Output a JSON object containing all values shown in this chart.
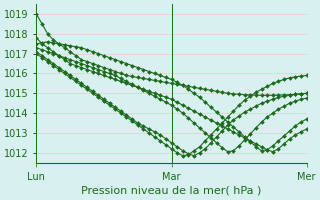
{
  "title": "",
  "xlabel": "Pression niveau de la mer( hPa )",
  "background_color": "#d8f0f0",
  "grid_color": "#f0c8c8",
  "line_color": "#1a6b1a",
  "marker": "D",
  "marker_size": 2.0,
  "linewidth": 0.8,
  "ylim": [
    1011.5,
    1019.5
  ],
  "yticks": [
    1012,
    1013,
    1014,
    1015,
    1016,
    1017,
    1018,
    1019
  ],
  "xlim": [
    0,
    96
  ],
  "xtick_positions": [
    0,
    48,
    96
  ],
  "xtick_labels": [
    "Lun",
    "Mar",
    "Mer"
  ],
  "xlabel_fontsize": 8,
  "tick_fontsize": 7,
  "series": [
    {
      "x": [
        0,
        2,
        4,
        6,
        8,
        10,
        12,
        14,
        16,
        18,
        20,
        22,
        24,
        26,
        28,
        30,
        32,
        34,
        36,
        38,
        40,
        42,
        44,
        46,
        48,
        50,
        52,
        54,
        56,
        58,
        60,
        62,
        64,
        66,
        68,
        70,
        72,
        74,
        76,
        78,
        80,
        82,
        84,
        86,
        88,
        90,
        92,
        94,
        96
      ],
      "y": [
        1019.0,
        1018.5,
        1018.0,
        1017.7,
        1017.5,
        1017.3,
        1017.1,
        1016.9,
        1016.7,
        1016.6,
        1016.5,
        1016.4,
        1016.3,
        1016.2,
        1016.1,
        1016.0,
        1015.9,
        1015.85,
        1015.8,
        1015.75,
        1015.7,
        1015.65,
        1015.6,
        1015.55,
        1015.5,
        1015.45,
        1015.4,
        1015.35,
        1015.3,
        1015.25,
        1015.2,
        1015.15,
        1015.1,
        1015.05,
        1015.0,
        1014.97,
        1014.95,
        1014.93,
        1014.92,
        1014.91,
        1014.9,
        1014.9,
        1014.9,
        1014.91,
        1014.92,
        1014.93,
        1014.95,
        1014.97,
        1015.0
      ]
    },
    {
      "x": [
        0,
        2,
        4,
        6,
        8,
        10,
        12,
        14,
        16,
        18,
        20,
        22,
        24,
        26,
        28,
        30,
        32,
        34,
        36,
        38,
        40,
        42,
        44,
        46,
        48,
        50,
        52,
        54,
        56,
        58,
        60,
        62,
        64,
        66,
        68,
        70,
        72,
        74,
        76,
        78,
        80,
        82,
        84,
        86,
        88,
        90,
        92,
        94,
        96
      ],
      "y": [
        1017.8,
        1017.5,
        1017.3,
        1017.1,
        1016.9,
        1016.7,
        1016.5,
        1016.4,
        1016.3,
        1016.2,
        1016.1,
        1016.0,
        1015.9,
        1015.8,
        1015.7,
        1015.6,
        1015.5,
        1015.4,
        1015.3,
        1015.2,
        1015.1,
        1015.0,
        1014.9,
        1014.8,
        1014.7,
        1014.55,
        1014.4,
        1014.25,
        1014.1,
        1013.95,
        1013.8,
        1013.65,
        1013.5,
        1013.35,
        1013.2,
        1013.05,
        1012.9,
        1012.75,
        1012.6,
        1012.45,
        1012.3,
        1012.15,
        1012.05,
        1012.2,
        1012.45,
        1012.7,
        1012.9,
        1013.05,
        1013.2
      ]
    },
    {
      "x": [
        0,
        2,
        4,
        6,
        8,
        10,
        12,
        14,
        16,
        18,
        20,
        22,
        24,
        26,
        28,
        30,
        32,
        34,
        36,
        38,
        40,
        42,
        44,
        46,
        48,
        50,
        52,
        54,
        56,
        58,
        60,
        62,
        64,
        66,
        68,
        70,
        72,
        74,
        76,
        78,
        80,
        82,
        84,
        86,
        88,
        90,
        92,
        94,
        96
      ],
      "y": [
        1017.5,
        1017.55,
        1017.6,
        1017.55,
        1017.5,
        1017.45,
        1017.4,
        1017.35,
        1017.3,
        1017.2,
        1017.1,
        1017.0,
        1016.9,
        1016.8,
        1016.7,
        1016.6,
        1016.5,
        1016.4,
        1016.3,
        1016.2,
        1016.1,
        1016.0,
        1015.9,
        1015.8,
        1015.7,
        1015.55,
        1015.4,
        1015.2,
        1015.0,
        1014.8,
        1014.55,
        1014.3,
        1014.05,
        1013.8,
        1013.55,
        1013.3,
        1013.05,
        1012.8,
        1012.55,
        1012.3,
        1012.1,
        1012.15,
        1012.35,
        1012.6,
        1012.85,
        1013.1,
        1013.35,
        1013.55,
        1013.7
      ]
    },
    {
      "x": [
        0,
        2,
        4,
        6,
        8,
        10,
        12,
        14,
        16,
        18,
        20,
        22,
        24,
        26,
        28,
        30,
        32,
        34,
        36,
        38,
        40,
        42,
        44,
        46,
        48,
        50,
        52,
        54,
        56,
        58,
        60,
        62,
        64,
        66,
        68,
        70,
        72,
        74,
        76,
        78,
        80,
        82,
        84,
        86,
        88,
        90,
        92,
        94,
        96
      ],
      "y": [
        1017.3,
        1017.2,
        1017.1,
        1017.0,
        1016.9,
        1016.8,
        1016.7,
        1016.6,
        1016.5,
        1016.4,
        1016.3,
        1016.2,
        1016.1,
        1016.0,
        1015.9,
        1015.75,
        1015.6,
        1015.45,
        1015.3,
        1015.15,
        1015.0,
        1014.85,
        1014.7,
        1014.55,
        1014.4,
        1014.2,
        1014.0,
        1013.75,
        1013.5,
        1013.25,
        1013.0,
        1012.75,
        1012.5,
        1012.25,
        1012.05,
        1012.1,
        1012.35,
        1012.65,
        1012.95,
        1013.25,
        1013.55,
        1013.8,
        1014.0,
        1014.2,
        1014.35,
        1014.5,
        1014.6,
        1014.7,
        1014.75
      ]
    },
    {
      "x": [
        0,
        2,
        4,
        6,
        8,
        10,
        12,
        14,
        16,
        18,
        20,
        22,
        24,
        26,
        28,
        30,
        32,
        34,
        36,
        38,
        40,
        42,
        44,
        46,
        48,
        50,
        52,
        54,
        56,
        58,
        60,
        62,
        64,
        66,
        68,
        70,
        72,
        74,
        76,
        78,
        80,
        82,
        84,
        86,
        88,
        90,
        92,
        94,
        96
      ],
      "y": [
        1017.1,
        1016.9,
        1016.7,
        1016.5,
        1016.3,
        1016.1,
        1015.9,
        1015.7,
        1015.5,
        1015.3,
        1015.1,
        1014.9,
        1014.7,
        1014.5,
        1014.3,
        1014.1,
        1013.9,
        1013.7,
        1013.5,
        1013.35,
        1013.2,
        1013.05,
        1012.9,
        1012.7,
        1012.5,
        1012.3,
        1012.1,
        1011.95,
        1011.85,
        1012.0,
        1012.2,
        1012.5,
        1012.8,
        1013.1,
        1013.4,
        1013.65,
        1013.85,
        1014.05,
        1014.2,
        1014.35,
        1014.5,
        1014.6,
        1014.7,
        1014.8,
        1014.85,
        1014.9,
        1014.95,
        1014.97,
        1015.0
      ]
    },
    {
      "x": [
        0,
        2,
        4,
        6,
        8,
        10,
        12,
        14,
        16,
        18,
        20,
        22,
        24,
        26,
        28,
        30,
        32,
        34,
        36,
        38,
        40,
        42,
        44,
        46,
        48,
        50,
        52,
        54,
        56,
        58,
        60,
        62,
        64,
        66,
        68,
        70,
        72,
        74,
        76,
        78,
        80,
        82,
        84,
        86,
        88,
        90,
        92,
        94,
        96
      ],
      "y": [
        1017.0,
        1016.8,
        1016.6,
        1016.4,
        1016.2,
        1016.0,
        1015.8,
        1015.6,
        1015.4,
        1015.2,
        1015.0,
        1014.8,
        1014.6,
        1014.4,
        1014.2,
        1014.0,
        1013.8,
        1013.6,
        1013.4,
        1013.2,
        1013.0,
        1012.8,
        1012.6,
        1012.4,
        1012.2,
        1012.0,
        1011.85,
        1011.9,
        1012.1,
        1012.3,
        1012.6,
        1012.9,
        1013.2,
        1013.5,
        1013.8,
        1014.1,
        1014.4,
        1014.65,
        1014.85,
        1015.05,
        1015.2,
        1015.35,
        1015.5,
        1015.6,
        1015.7,
        1015.78,
        1015.83,
        1015.87,
        1015.9
      ]
    }
  ]
}
